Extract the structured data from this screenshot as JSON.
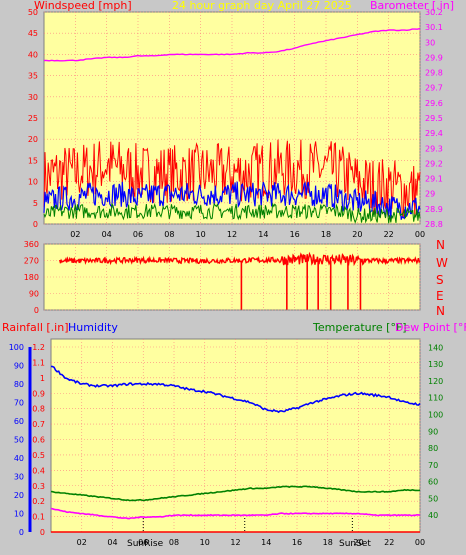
{
  "colors": {
    "background": "#c8c8c8",
    "plot_bg": "#ffffa0",
    "grid": "#ff8080",
    "wind": "#ff0000",
    "gust": "#0000ff",
    "avg": "#008000",
    "baro": "#ff00ff",
    "dir": "#ff0000",
    "humidity": "#0000ff",
    "temperature": "#008000",
    "dewpoint": "#ff00ff",
    "title": "#ffff00",
    "axis_text": "#000000",
    "sun_marker": "#000000"
  },
  "top": {
    "title": "24 hour graph day   April 27 2025",
    "left_label": "Windspeed [mph]",
    "right_label": "Barometer [.in]"
  },
  "mid": {
    "labels": {
      "n": "N",
      "w": "W",
      "s": "S",
      "e": "E",
      "n2": "N"
    }
  },
  "bottom": {
    "rain_label": "Rainfall [.in]",
    "hum_label": "Humidity",
    "temp_label": "Temperature [°F]",
    "dew_label": "Dew Point [°F]",
    "sunrise_label": "SunRise",
    "sunset_label": "SunSet"
  },
  "chart_data": [
    {
      "type": "line",
      "name": "wind-baro",
      "x_ticks": [
        "02",
        "04",
        "06",
        "08",
        "10",
        "12",
        "14",
        "16",
        "18",
        "20",
        "22",
        "00"
      ],
      "y_left": {
        "label": "Windspeed [mph]",
        "ylim": [
          0,
          50
        ],
        "ticks": [
          "0",
          "5",
          "10",
          "15",
          "20",
          "25",
          "30",
          "35",
          "40",
          "45",
          "50"
        ]
      },
      "y_right": {
        "label": "Barometer [.in]",
        "ylim": [
          28.8,
          30.2
        ],
        "ticks": [
          "28.8",
          "28.9",
          "29",
          "29.1",
          "29.2",
          "29.3",
          "29.4",
          "29.5",
          "29.6",
          "29.7",
          "29.8",
          "29.9",
          "30",
          "30.1",
          "30.2"
        ]
      },
      "series": [
        {
          "name": "Barometer",
          "axis": "right",
          "x": [
            0,
            1,
            2,
            3,
            4,
            5,
            6,
            7,
            8,
            9,
            10,
            11,
            12,
            13,
            14,
            15,
            16,
            17,
            18,
            19,
            20,
            21,
            22,
            23,
            24
          ],
          "values": [
            29.88,
            29.88,
            29.88,
            29.89,
            29.9,
            29.9,
            29.91,
            29.91,
            29.92,
            29.92,
            29.92,
            29.92,
            29.92,
            29.93,
            29.93,
            29.94,
            29.96,
            29.99,
            30.01,
            30.03,
            30.05,
            30.07,
            30.08,
            30.08,
            30.09
          ]
        },
        {
          "name": "Windspeed",
          "axis": "left",
          "x": [
            0,
            1,
            2,
            3,
            4,
            5,
            6,
            7,
            8,
            9,
            10,
            11,
            12,
            13,
            14,
            15,
            16,
            17,
            18,
            19,
            20,
            21,
            22,
            23,
            24
          ],
          "values": [
            11,
            12,
            12,
            13,
            14,
            13,
            12,
            12,
            12,
            12,
            12,
            12,
            12,
            12,
            13,
            13,
            13,
            13,
            13,
            12,
            10,
            9,
            9,
            8,
            8
          ]
        },
        {
          "name": "Gust",
          "axis": "left",
          "x": [
            0,
            1,
            2,
            3,
            4,
            5,
            6,
            7,
            8,
            9,
            10,
            11,
            12,
            13,
            14,
            15,
            16,
            17,
            18,
            19,
            20,
            21,
            22,
            23,
            24
          ],
          "values": [
            5,
            6,
            6,
            7,
            7,
            7,
            6,
            7,
            7,
            7,
            7,
            7,
            7,
            7,
            7,
            7,
            7,
            7,
            7,
            6,
            5,
            5,
            4,
            4,
            4
          ]
        },
        {
          "name": "Average",
          "axis": "left",
          "x": [
            0,
            1,
            2,
            3,
            4,
            5,
            6,
            7,
            8,
            9,
            10,
            11,
            12,
            13,
            14,
            15,
            16,
            17,
            18,
            19,
            20,
            21,
            22,
            23,
            24
          ],
          "values": [
            2,
            3,
            3,
            3,
            3,
            3,
            3,
            3,
            3,
            3,
            3,
            3,
            3,
            3,
            3,
            3,
            3,
            3,
            3,
            3,
            2,
            2,
            2,
            2,
            2
          ]
        }
      ]
    },
    {
      "type": "line",
      "name": "wind-direction",
      "y_left": {
        "ylim": [
          0,
          360
        ],
        "ticks": [
          "0",
          "90",
          "180",
          "270",
          "360"
        ]
      },
      "series": [
        {
          "name": "Direction",
          "x": [
            0,
            2,
            4,
            6,
            8,
            10,
            12,
            14,
            16,
            18,
            20,
            22,
            24
          ],
          "values": [
            270,
            268,
            270,
            272,
            270,
            268,
            270,
            272,
            275,
            278,
            270,
            268,
            270
          ]
        }
      ],
      "drops": [
        12.6,
        15.5,
        16.8,
        17.5,
        18.3,
        19.4,
        20.2
      ]
    },
    {
      "type": "line",
      "name": "rain-humidity-temp",
      "x_ticks": [
        "02",
        "04",
        "06",
        "08",
        "10",
        "12",
        "14",
        "16",
        "18",
        "20",
        "22",
        "00"
      ],
      "y_left_outer": {
        "label": "Rainfall [.in]",
        "ylim": [
          0,
          1.2
        ],
        "ticks": [
          "0",
          "0.1",
          "0.2",
          "0.3",
          "0.4",
          "0.5",
          "0.6",
          "0.7",
          "0.8",
          "0.9",
          "1",
          "1.1",
          "1.2"
        ]
      },
      "y_left_inner": {
        "label": "Humidity",
        "ylim": [
          0,
          100
        ],
        "ticks": [
          "0",
          "10",
          "20",
          "30",
          "40",
          "50",
          "60",
          "70",
          "80",
          "90",
          "100"
        ]
      },
      "y_right": {
        "label": "Temperature [°F]",
        "ylim": [
          30,
          145
        ],
        "ticks": [
          "40",
          "50",
          "60",
          "70",
          "80",
          "90",
          "100",
          "110",
          "120",
          "130",
          "140"
        ]
      },
      "series": [
        {
          "name": "Humidity",
          "axis": "inner",
          "x": [
            0,
            1,
            2,
            3,
            4,
            5,
            6,
            7,
            8,
            9,
            10,
            11,
            12,
            13,
            14,
            15,
            16,
            17,
            18,
            19,
            20,
            21,
            22,
            23,
            24
          ],
          "values": [
            90,
            83,
            80,
            79,
            79,
            80,
            80,
            80,
            79,
            77,
            76,
            74,
            72,
            70,
            66,
            65,
            67,
            70,
            72,
            74,
            75,
            74,
            73,
            70,
            69
          ]
        },
        {
          "name": "Temperature",
          "axis": "right",
          "x": [
            0,
            1,
            2,
            3,
            4,
            5,
            6,
            7,
            8,
            9,
            10,
            11,
            12,
            13,
            14,
            15,
            16,
            17,
            18,
            19,
            20,
            21,
            22,
            23,
            24
          ],
          "values": [
            54,
            53,
            52,
            51,
            50,
            49,
            49,
            50,
            51,
            52,
            53,
            54,
            55,
            56,
            56,
            57,
            57,
            57,
            56,
            55,
            54,
            54,
            54,
            55,
            55
          ]
        },
        {
          "name": "Dew Point",
          "axis": "right",
          "x": [
            0,
            1,
            2,
            3,
            4,
            5,
            6,
            7,
            8,
            9,
            10,
            11,
            12,
            13,
            14,
            15,
            16,
            17,
            18,
            19,
            20,
            21,
            22,
            23,
            24
          ],
          "values": [
            44,
            42,
            41,
            40,
            39,
            38,
            39,
            39,
            40,
            40,
            40,
            40,
            40,
            40,
            40,
            41,
            41,
            41,
            41,
            41,
            41,
            40,
            40,
            40,
            40
          ]
        },
        {
          "name": "Rainfall",
          "axis": "outer",
          "x": [
            0,
            24
          ],
          "values": [
            0,
            0
          ]
        }
      ],
      "sunrise": 6.0,
      "sunset": 19.6
    }
  ]
}
